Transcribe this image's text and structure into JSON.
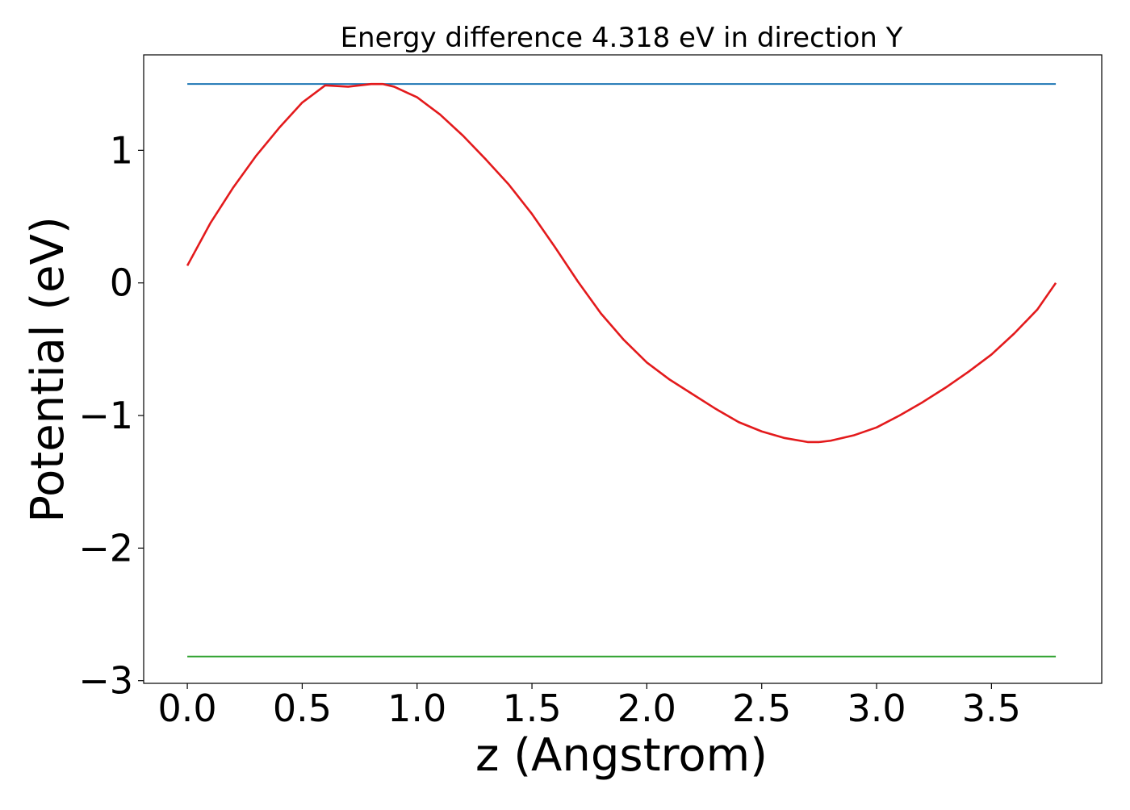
{
  "chart_data": {
    "type": "line",
    "title": "Energy difference 4.318 eV in direction Y",
    "xlabel": "z (Angstrom)",
    "ylabel": "Potential (eV)",
    "xlim": [
      -0.19,
      3.98
    ],
    "ylim": [
      -3.02,
      1.72
    ],
    "xticks": [
      0.0,
      0.5,
      1.0,
      1.5,
      2.0,
      2.5,
      3.0,
      3.5
    ],
    "xtick_labels": [
      "0.0",
      "0.5",
      "1.0",
      "1.5",
      "2.0",
      "2.5",
      "3.0",
      "3.5"
    ],
    "yticks": [
      1,
      0,
      -1,
      -2,
      -3
    ],
    "ytick_labels": [
      "1",
      "0",
      "−1",
      "−2",
      "−3"
    ],
    "grid": false,
    "series": [
      {
        "color": "#1f77b4",
        "kind": "hline",
        "x": [
          0.0,
          3.78
        ],
        "y": [
          1.5,
          1.5
        ]
      },
      {
        "color": "#2ca02c",
        "kind": "hline",
        "x": [
          0.0,
          3.78
        ],
        "y": [
          -2.818,
          -2.818
        ]
      },
      {
        "color": "#e31a1c",
        "kind": "curve",
        "x": [
          0.0,
          0.1,
          0.2,
          0.3,
          0.4,
          0.5,
          0.6,
          0.7,
          0.8,
          0.85,
          0.9,
          1.0,
          1.1,
          1.2,
          1.3,
          1.4,
          1.5,
          1.6,
          1.7,
          1.8,
          1.9,
          2.0,
          2.1,
          2.2,
          2.3,
          2.4,
          2.5,
          2.6,
          2.7,
          2.75,
          2.8,
          2.9,
          3.0,
          3.1,
          3.2,
          3.3,
          3.4,
          3.5,
          3.6,
          3.7,
          3.78
        ],
        "y": [
          0.13,
          0.45,
          0.72,
          0.96,
          1.17,
          1.36,
          1.49,
          1.48,
          1.5,
          1.5,
          1.48,
          1.4,
          1.27,
          1.11,
          0.93,
          0.74,
          0.52,
          0.27,
          0.01,
          -0.23,
          -0.43,
          -0.6,
          -0.73,
          -0.84,
          -0.95,
          -1.05,
          -1.12,
          -1.17,
          -1.2,
          -1.2,
          -1.19,
          -1.15,
          -1.09,
          -1.0,
          -0.9,
          -0.79,
          -0.67,
          -0.54,
          -0.38,
          -0.2,
          0.0
        ]
      }
    ]
  }
}
